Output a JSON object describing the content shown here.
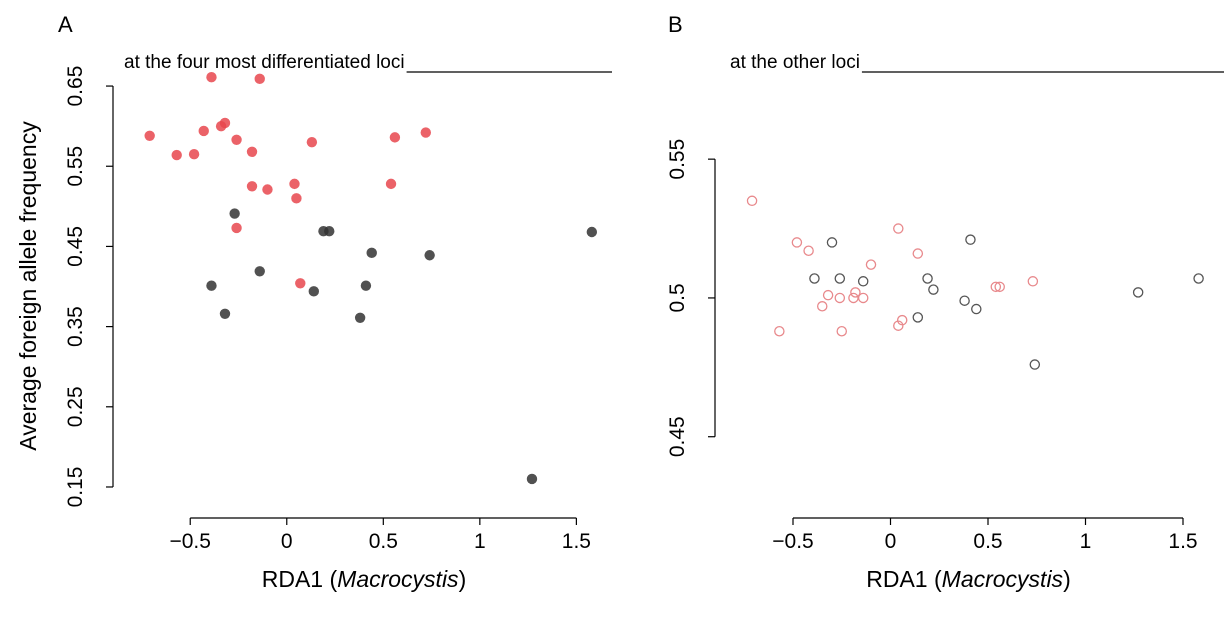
{
  "chart_data": [
    {
      "type": "scatter",
      "panel_label": "A",
      "title": "at the four most differentiated loci",
      "xlabel": "RDA1 (Macrocystis)",
      "xlabel_plain": "RDA1 (",
      "xlabel_italic": "Macrocystis",
      "xlabel_close": ")",
      "ylabel": "Average foreign allele frequency",
      "xlim": [
        -0.9,
        1.7
      ],
      "ylim": [
        0.14,
        0.68
      ],
      "xticks": [
        -0.5,
        0,
        0.5,
        1,
        1.5
      ],
      "xtick_labels": [
        "−0.5",
        "0",
        "0.5",
        "1",
        "1.5"
      ],
      "yticks": [
        0.15,
        0.25,
        0.35,
        0.45,
        0.55,
        0.65
      ],
      "ytick_labels": [
        "0.15",
        "0.25",
        "0.35",
        "0.45",
        "0.55",
        "0.65"
      ],
      "marker": "filled",
      "series": [
        {
          "color": "#e8474d",
          "points": [
            [
              -0.71,
              0.588
            ],
            [
              -0.57,
              0.564
            ],
            [
              -0.48,
              0.565
            ],
            [
              -0.43,
              0.594
            ],
            [
              -0.39,
              0.661
            ],
            [
              -0.34,
              0.6
            ],
            [
              -0.32,
              0.604
            ],
            [
              -0.26,
              0.583
            ],
            [
              -0.26,
              0.473
            ],
            [
              -0.18,
              0.525
            ],
            [
              -0.18,
              0.568
            ],
            [
              -0.14,
              0.659
            ],
            [
              -0.1,
              0.521
            ],
            [
              0.04,
              0.528
            ],
            [
              0.05,
              0.51
            ],
            [
              0.07,
              0.404
            ],
            [
              0.13,
              0.58
            ],
            [
              0.54,
              0.528
            ],
            [
              0.56,
              0.586
            ],
            [
              0.72,
              0.592
            ]
          ]
        },
        {
          "color": "#333333",
          "points": [
            [
              -0.27,
              0.491
            ],
            [
              -0.39,
              0.401
            ],
            [
              -0.32,
              0.366
            ],
            [
              -0.14,
              0.419
            ],
            [
              0.19,
              0.469
            ],
            [
              0.22,
              0.469
            ],
            [
              0.14,
              0.394
            ],
            [
              0.38,
              0.361
            ],
            [
              0.41,
              0.401
            ],
            [
              0.44,
              0.442
            ],
            [
              0.74,
              0.439
            ],
            [
              1.58,
              0.468
            ],
            [
              1.27,
              0.16
            ]
          ]
        }
      ]
    },
    {
      "type": "scatter",
      "panel_label": "B",
      "title": "at the other loci",
      "xlabel": "RDA1 (Macrocystis)",
      "xlabel_plain": "RDA1 (",
      "xlabel_italic": "Macrocystis",
      "xlabel_close": ")",
      "ylabel": "",
      "xlim": [
        -0.9,
        1.7
      ],
      "ylim": [
        0.42,
        0.585
      ],
      "xticks": [
        -0.5,
        0,
        0.5,
        1,
        1.5
      ],
      "xtick_labels": [
        "−0.5",
        "0",
        "0.5",
        "1",
        "1.5"
      ],
      "yticks": [
        0.45,
        0.5,
        0.55
      ],
      "ytick_labels": [
        "0.45",
        "0.5",
        "0.55"
      ],
      "marker": "open",
      "series": [
        {
          "color": "#e8898c",
          "points": [
            [
              -0.71,
              0.535
            ],
            [
              -0.57,
              0.488
            ],
            [
              -0.48,
              0.52
            ],
            [
              -0.42,
              0.517
            ],
            [
              -0.35,
              0.497
            ],
            [
              -0.32,
              0.501
            ],
            [
              -0.26,
              0.5
            ],
            [
              -0.25,
              0.488
            ],
            [
              -0.19,
              0.5
            ],
            [
              -0.18,
              0.502
            ],
            [
              -0.14,
              0.5
            ],
            [
              -0.1,
              0.512
            ],
            [
              0.04,
              0.49
            ],
            [
              0.04,
              0.525
            ],
            [
              0.06,
              0.492
            ],
            [
              0.14,
              0.516
            ],
            [
              0.54,
              0.504
            ],
            [
              0.56,
              0.504
            ],
            [
              0.73,
              0.506
            ]
          ]
        },
        {
          "color": "#555555",
          "points": [
            [
              -0.39,
              0.507
            ],
            [
              -0.3,
              0.52
            ],
            [
              -0.26,
              0.507
            ],
            [
              -0.14,
              0.506
            ],
            [
              0.14,
              0.493
            ],
            [
              0.19,
              0.507
            ],
            [
              0.22,
              0.503
            ],
            [
              0.38,
              0.499
            ],
            [
              0.41,
              0.521
            ],
            [
              0.44,
              0.496
            ],
            [
              0.74,
              0.476
            ],
            [
              1.27,
              0.502
            ],
            [
              1.58,
              0.507
            ]
          ]
        }
      ]
    }
  ]
}
